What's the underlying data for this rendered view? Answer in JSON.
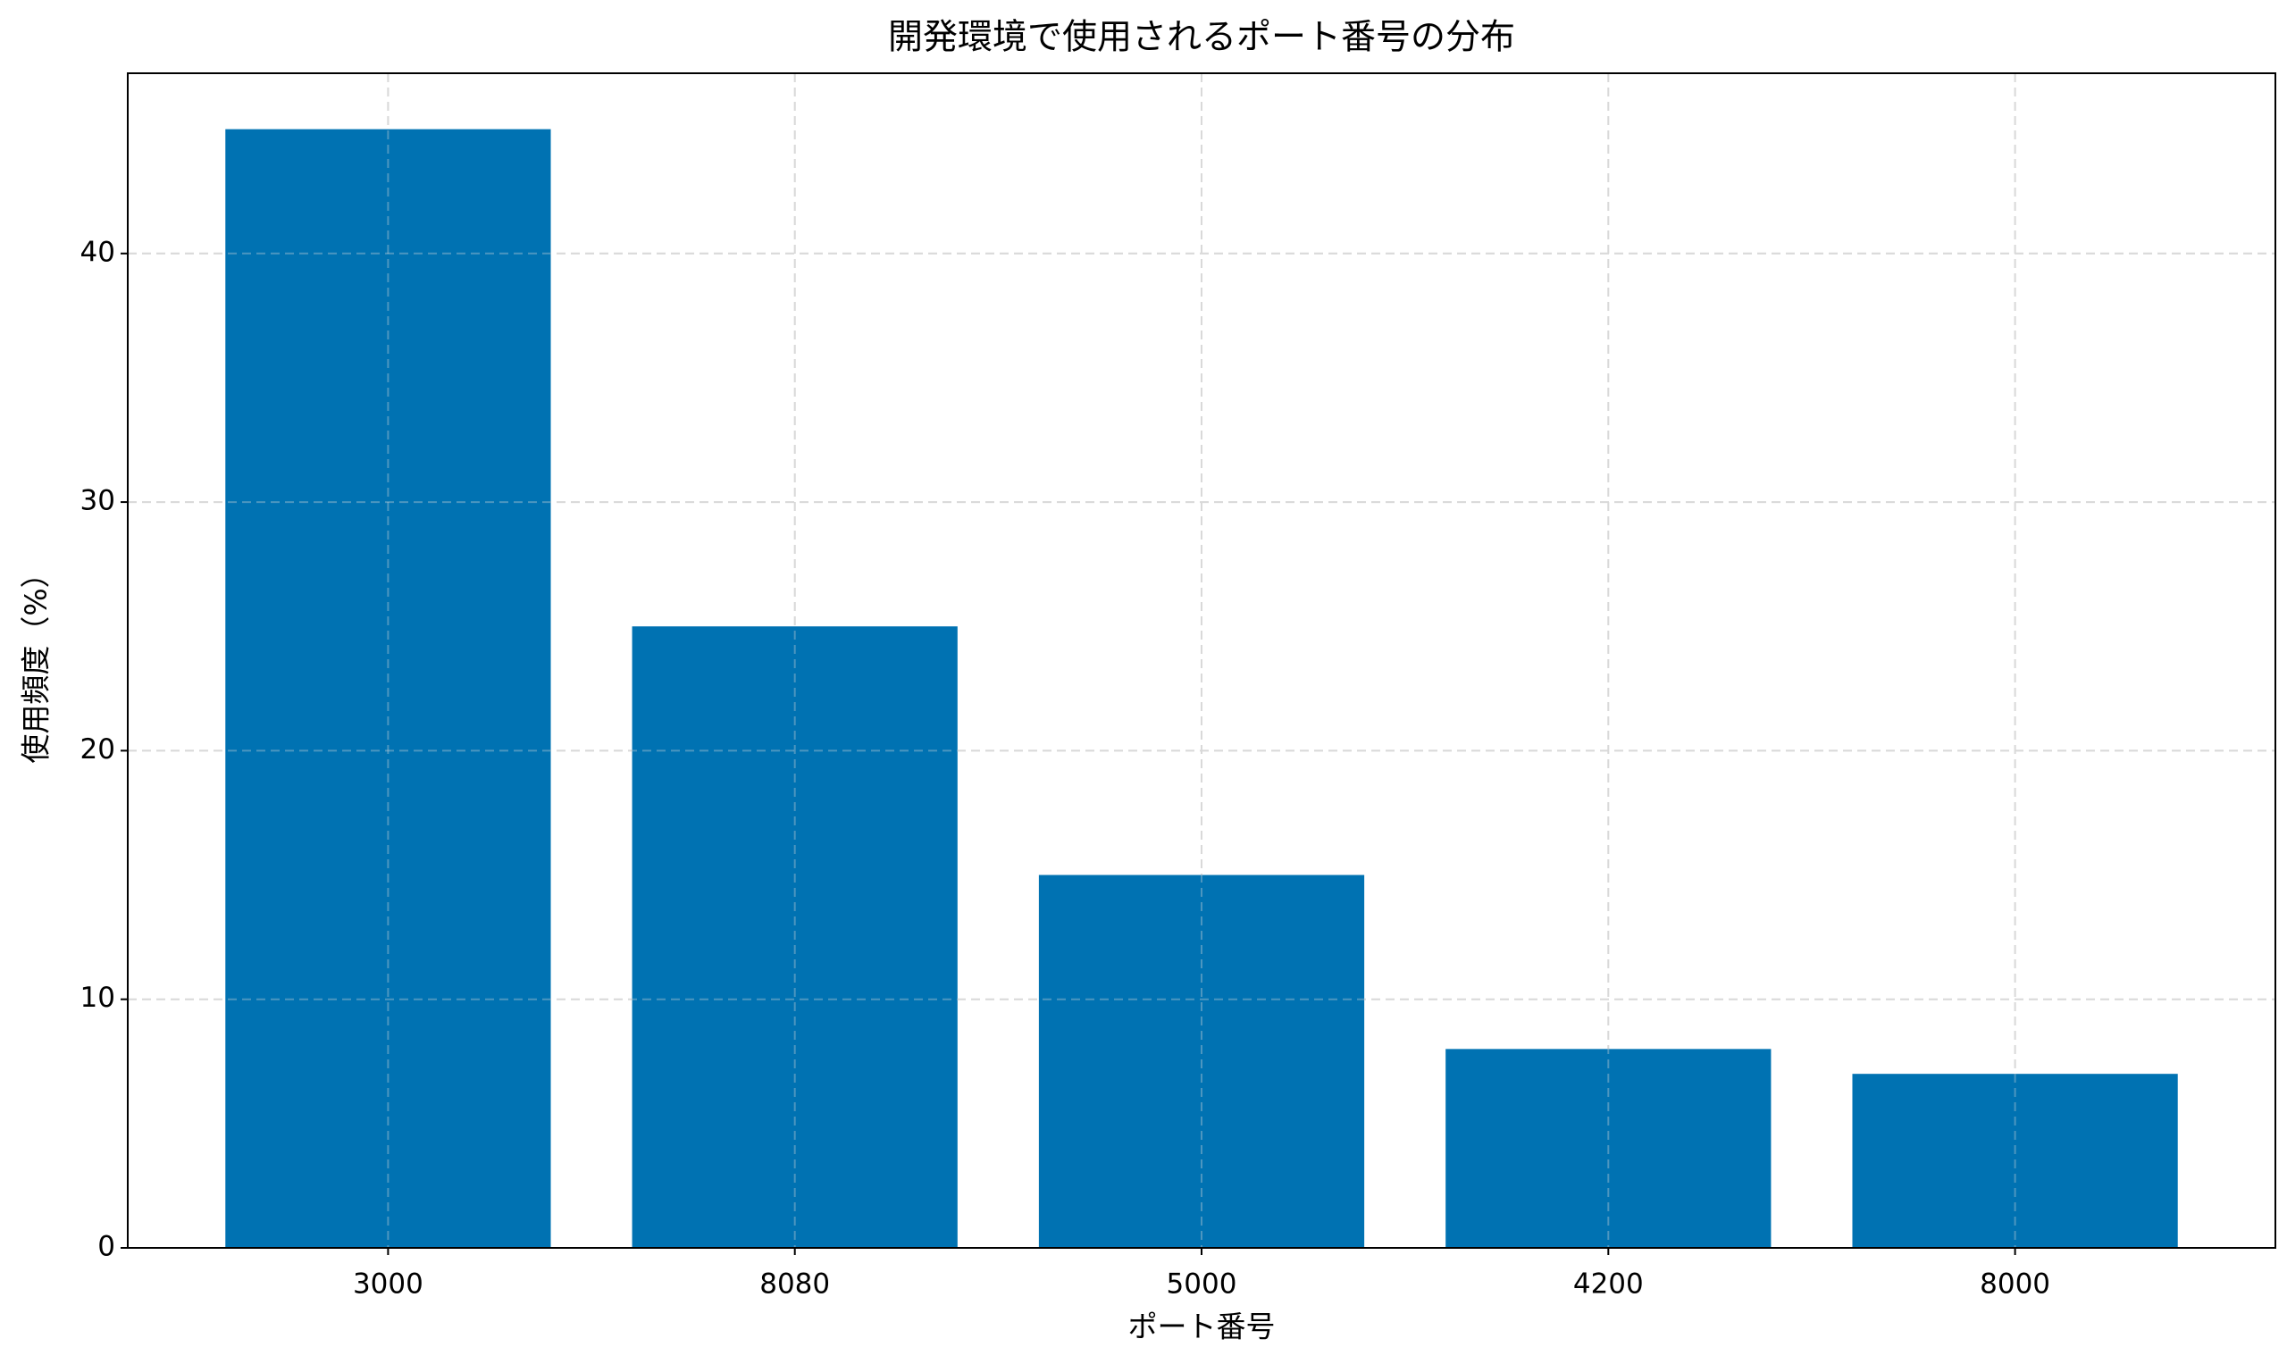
{
  "chart_data": {
    "type": "bar",
    "title": "開発環境で使用されるポート番号の分布",
    "x_label": "ポート番号",
    "y_label": "使用頻度（%）",
    "categories": [
      "3000",
      "8080",
      "5000",
      "4200",
      "8000"
    ],
    "values": [
      45,
      25,
      15,
      8,
      7
    ],
    "color": "#0072b2",
    "ylim": [
      0,
      47.25
    ],
    "yticks": [
      0,
      10,
      20,
      30,
      40
    ],
    "grid": true
  }
}
